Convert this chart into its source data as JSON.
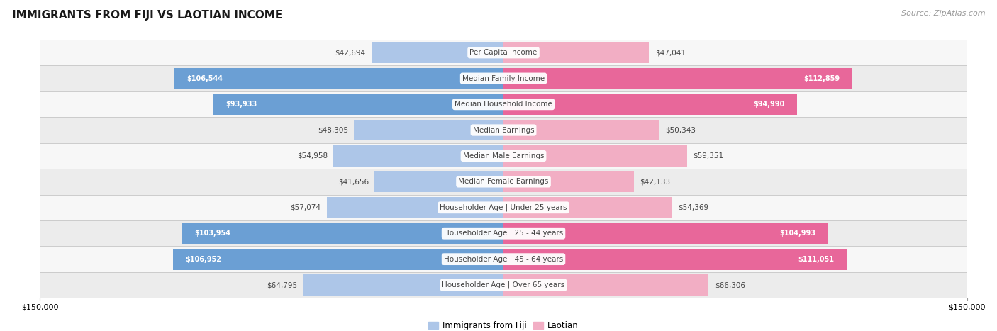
{
  "title": "IMMIGRANTS FROM FIJI VS LAOTIAN INCOME",
  "source": "Source: ZipAtlas.com",
  "categories": [
    "Per Capita Income",
    "Median Family Income",
    "Median Household Income",
    "Median Earnings",
    "Median Male Earnings",
    "Median Female Earnings",
    "Householder Age | Under 25 years",
    "Householder Age | 25 - 44 years",
    "Householder Age | 45 - 64 years",
    "Householder Age | Over 65 years"
  ],
  "fiji_values": [
    42694,
    106544,
    93933,
    48305,
    54958,
    41656,
    57074,
    103954,
    106952,
    64795
  ],
  "laotian_values": [
    47041,
    112859,
    94990,
    50343,
    59351,
    42133,
    54369,
    104993,
    111051,
    66306
  ],
  "fiji_color_light": "#adc6e8",
  "fiji_color_dark": "#6b9fd4",
  "laotian_color_light": "#f2aec4",
  "laotian_color_dark": "#e8679a",
  "fiji_label": "Immigrants from Fiji",
  "laotian_label": "Laotian",
  "fiji_label_values": [
    "$42,694",
    "$106,544",
    "$93,933",
    "$48,305",
    "$54,958",
    "$41,656",
    "$57,074",
    "$103,954",
    "$106,952",
    "$64,795"
  ],
  "laotian_label_values": [
    "$47,041",
    "$112,859",
    "$94,990",
    "$50,343",
    "$59,351",
    "$42,133",
    "$54,369",
    "$104,993",
    "$111,051",
    "$66,306"
  ],
  "max_value": 150000,
  "row_bg_odd": "#f7f7f7",
  "row_bg_even": "#ececec",
  "border_color": "#cccccc",
  "inside_threshold": 70000
}
